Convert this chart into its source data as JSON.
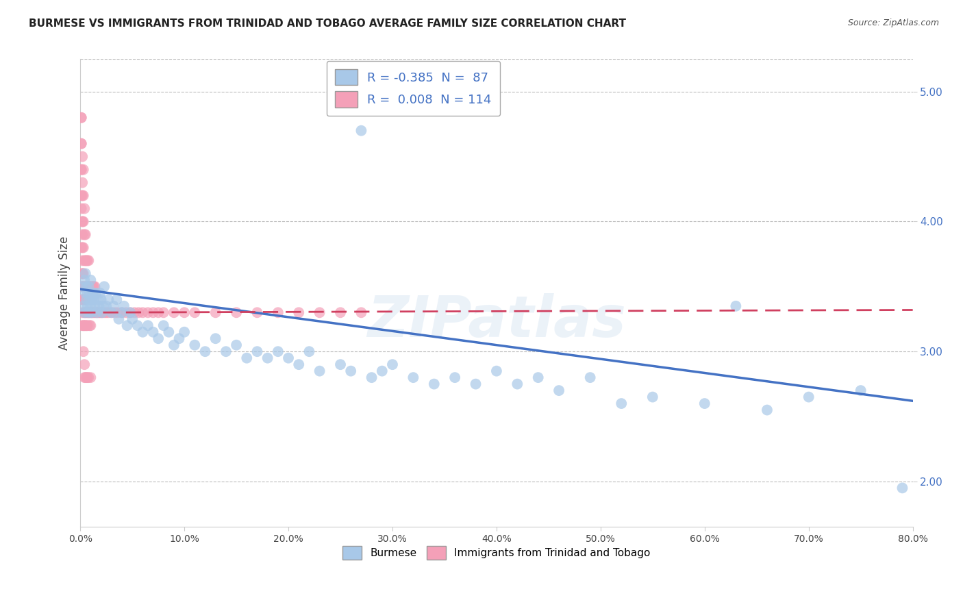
{
  "title": "BURMESE VS IMMIGRANTS FROM TRINIDAD AND TOBAGO AVERAGE FAMILY SIZE CORRELATION CHART",
  "source": "Source: ZipAtlas.com",
  "ylabel": "Average Family Size",
  "x_min": 0.0,
  "x_max": 0.8,
  "y_min": 1.65,
  "y_max": 5.25,
  "y_ticks": [
    2.0,
    3.0,
    4.0,
    5.0
  ],
  "x_ticks": [
    0.0,
    0.1,
    0.2,
    0.3,
    0.4,
    0.5,
    0.6,
    0.7,
    0.8
  ],
  "x_tick_labels": [
    "0.0%",
    "10.0%",
    "20.0%",
    "30.0%",
    "40.0%",
    "50.0%",
    "60.0%",
    "70.0%",
    "80.0%"
  ],
  "blue_R": -0.385,
  "blue_N": 87,
  "pink_R": 0.008,
  "pink_N": 114,
  "blue_color": "#a8c8e8",
  "pink_color": "#f4a0b8",
  "blue_line_color": "#4472c4",
  "pink_line_color": "#d04060",
  "blue_label": "Burmese",
  "pink_label": "Immigrants from Trinidad and Tobago",
  "background_color": "#ffffff",
  "grid_color": "#bbbbbb",
  "blue_line_y0": 3.48,
  "blue_line_y1": 2.62,
  "pink_line_y0": 3.3,
  "pink_line_y1": 3.32,
  "blue_scatter_x": [
    0.002,
    0.003,
    0.004,
    0.004,
    0.005,
    0.005,
    0.006,
    0.006,
    0.007,
    0.007,
    0.008,
    0.008,
    0.009,
    0.009,
    0.01,
    0.01,
    0.011,
    0.011,
    0.012,
    0.013,
    0.014,
    0.015,
    0.016,
    0.017,
    0.018,
    0.019,
    0.02,
    0.021,
    0.022,
    0.023,
    0.025,
    0.027,
    0.03,
    0.032,
    0.035,
    0.037,
    0.04,
    0.042,
    0.045,
    0.048,
    0.05,
    0.055,
    0.06,
    0.065,
    0.07,
    0.075,
    0.08,
    0.085,
    0.09,
    0.095,
    0.1,
    0.11,
    0.12,
    0.13,
    0.14,
    0.15,
    0.16,
    0.17,
    0.18,
    0.19,
    0.2,
    0.21,
    0.22,
    0.23,
    0.25,
    0.26,
    0.27,
    0.28,
    0.29,
    0.3,
    0.32,
    0.34,
    0.36,
    0.38,
    0.4,
    0.42,
    0.44,
    0.46,
    0.49,
    0.52,
    0.55,
    0.6,
    0.63,
    0.66,
    0.7,
    0.75,
    0.79
  ],
  "blue_scatter_y": [
    3.5,
    3.35,
    3.55,
    3.3,
    3.45,
    3.6,
    3.4,
    3.5,
    3.35,
    3.45,
    3.5,
    3.3,
    3.45,
    3.4,
    3.35,
    3.55,
    3.4,
    3.3,
    3.45,
    3.4,
    3.35,
    3.45,
    3.3,
    3.4,
    3.35,
    3.45,
    3.4,
    3.3,
    3.35,
    3.5,
    3.35,
    3.4,
    3.3,
    3.35,
    3.4,
    3.25,
    3.3,
    3.35,
    3.2,
    3.3,
    3.25,
    3.2,
    3.15,
    3.2,
    3.15,
    3.1,
    3.2,
    3.15,
    3.05,
    3.1,
    3.15,
    3.05,
    3.0,
    3.1,
    3.0,
    3.05,
    2.95,
    3.0,
    2.95,
    3.0,
    2.95,
    2.9,
    3.0,
    2.85,
    2.9,
    2.85,
    4.7,
    2.8,
    2.85,
    2.9,
    2.8,
    2.75,
    2.8,
    2.75,
    2.85,
    2.75,
    2.8,
    2.7,
    2.8,
    2.6,
    2.65,
    2.6,
    3.35,
    2.55,
    2.65,
    2.7,
    1.95
  ],
  "pink_scatter_x": [
    0.001,
    0.001,
    0.001,
    0.001,
    0.001,
    0.001,
    0.001,
    0.002,
    0.002,
    0.002,
    0.002,
    0.002,
    0.002,
    0.002,
    0.002,
    0.002,
    0.002,
    0.003,
    0.003,
    0.003,
    0.003,
    0.003,
    0.003,
    0.003,
    0.003,
    0.004,
    0.004,
    0.004,
    0.004,
    0.004,
    0.004,
    0.004,
    0.005,
    0.005,
    0.005,
    0.005,
    0.005,
    0.005,
    0.006,
    0.006,
    0.006,
    0.006,
    0.007,
    0.007,
    0.007,
    0.007,
    0.008,
    0.008,
    0.008,
    0.009,
    0.009,
    0.009,
    0.01,
    0.01,
    0.01,
    0.011,
    0.011,
    0.012,
    0.012,
    0.013,
    0.013,
    0.014,
    0.014,
    0.015,
    0.016,
    0.017,
    0.018,
    0.019,
    0.02,
    0.021,
    0.023,
    0.025,
    0.027,
    0.03,
    0.033,
    0.036,
    0.04,
    0.044,
    0.048,
    0.052,
    0.056,
    0.06,
    0.065,
    0.07,
    0.075,
    0.08,
    0.09,
    0.1,
    0.11,
    0.13,
    0.15,
    0.17,
    0.19,
    0.21,
    0.23,
    0.25,
    0.27,
    0.001,
    0.001,
    0.001,
    0.001,
    0.002,
    0.002,
    0.002,
    0.002,
    0.003,
    0.003,
    0.004,
    0.004,
    0.005,
    0.006,
    0.007,
    0.008,
    0.01
  ],
  "pink_scatter_y": [
    3.5,
    3.8,
    4.1,
    4.4,
    4.6,
    4.8,
    3.2,
    3.6,
    3.9,
    4.2,
    4.5,
    3.4,
    3.7,
    4.0,
    4.3,
    3.3,
    3.5,
    3.4,
    3.6,
    3.8,
    4.0,
    4.2,
    4.4,
    3.2,
    3.5,
    3.3,
    3.5,
    3.7,
    3.9,
    4.1,
    3.2,
    3.4,
    3.3,
    3.5,
    3.7,
    3.9,
    3.2,
    3.4,
    3.3,
    3.5,
    3.7,
    3.2,
    3.3,
    3.5,
    3.7,
    3.2,
    3.3,
    3.5,
    3.7,
    3.3,
    3.5,
    3.2,
    3.3,
    3.5,
    3.2,
    3.3,
    3.5,
    3.3,
    3.5,
    3.3,
    3.5,
    3.3,
    3.5,
    3.3,
    3.3,
    3.3,
    3.3,
    3.3,
    3.3,
    3.3,
    3.3,
    3.3,
    3.3,
    3.3,
    3.3,
    3.3,
    3.3,
    3.3,
    3.3,
    3.3,
    3.3,
    3.3,
    3.3,
    3.3,
    3.3,
    3.3,
    3.3,
    3.3,
    3.3,
    3.3,
    3.3,
    3.3,
    3.3,
    3.3,
    3.3,
    3.3,
    3.3,
    4.8,
    4.6,
    4.4,
    4.2,
    4.0,
    3.8,
    3.6,
    3.4,
    3.2,
    3.0,
    2.9,
    2.8,
    2.8,
    2.8,
    2.8,
    2.8,
    2.8
  ]
}
